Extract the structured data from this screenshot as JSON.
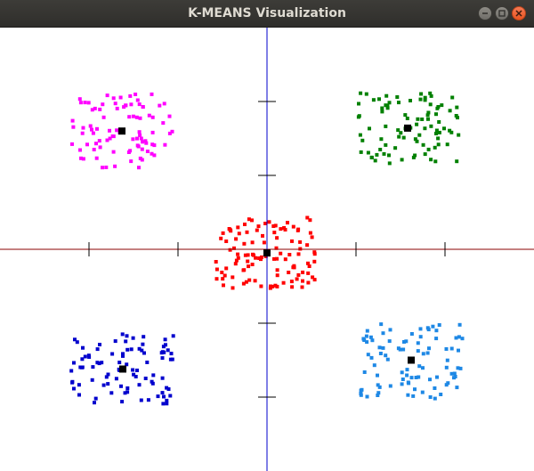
{
  "window": {
    "title": "K-MEANS Visualization"
  },
  "plot": {
    "background": "#ffffff",
    "x_axis_color": "#8b0000",
    "y_axis_color": "#0000cd",
    "x_range": [
      -3,
      3
    ],
    "y_range": [
      -3,
      3
    ],
    "x_ticks": [
      -2,
      -1,
      1,
      2
    ],
    "y_ticks": [
      -2,
      -1,
      1,
      2
    ]
  },
  "chart_data": {
    "type": "scatter",
    "x_range": [
      -3,
      3
    ],
    "y_range": [
      -3,
      3
    ],
    "centroid_color": "#000000",
    "clusters": [
      {
        "color": "#ff00ff",
        "center": [
          -1.63,
          1.6
        ],
        "spread": [
          0.57,
          0.5
        ],
        "points": 90
      },
      {
        "color": "#008000",
        "center": [
          1.58,
          1.64
        ],
        "spread": [
          0.58,
          0.48
        ],
        "points": 90
      },
      {
        "color": "#ff0000",
        "center": [
          0.0,
          -0.05
        ],
        "spread": [
          0.58,
          0.48
        ],
        "points": 110
      },
      {
        "color": "#0000cd",
        "center": [
          -1.62,
          -1.62
        ],
        "spread": [
          0.58,
          0.48
        ],
        "points": 90
      },
      {
        "color": "#1e88e5",
        "center": [
          1.62,
          -1.5
        ],
        "spread": [
          0.58,
          0.52
        ],
        "points": 90
      }
    ]
  }
}
